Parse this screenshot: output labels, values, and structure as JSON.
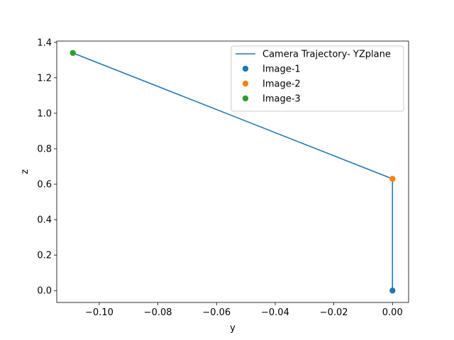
{
  "chart_data": {
    "type": "line",
    "title": "",
    "xlabel": "y",
    "ylabel": "z",
    "xlim": [
      -0.1145,
      0.0055
    ],
    "ylim": [
      -0.067,
      1.407
    ],
    "xticks": [
      -0.1,
      -0.08,
      -0.06,
      -0.04,
      -0.02,
      0.0
    ],
    "xtick_labels": [
      "−0.10",
      "−0.08",
      "−0.06",
      "−0.04",
      "−0.02",
      "0.00"
    ],
    "yticks": [
      0.0,
      0.2,
      0.4,
      0.6,
      0.8,
      1.0,
      1.2,
      1.4
    ],
    "ytick_labels": [
      "0.0",
      "0.2",
      "0.4",
      "0.6",
      "0.8",
      "1.0",
      "1.2",
      "1.4"
    ],
    "grid": false,
    "legend_position": "top-right",
    "series": [
      {
        "name": "Camera Trajectory- YZplane",
        "kind": "line",
        "color": "#1f77b4",
        "x": [
          0.0,
          0.0,
          -0.109
        ],
        "y": [
          0.0,
          0.63,
          1.34
        ]
      },
      {
        "name": "Image-1",
        "kind": "scatter",
        "color": "#1f77b4",
        "x": [
          0.0
        ],
        "y": [
          0.0
        ]
      },
      {
        "name": "Image-2",
        "kind": "scatter",
        "color": "#ff7f0e",
        "x": [
          0.0
        ],
        "y": [
          0.63
        ]
      },
      {
        "name": "Image-3",
        "kind": "scatter",
        "color": "#2ca02c",
        "x": [
          -0.109
        ],
        "y": [
          1.34
        ]
      }
    ]
  }
}
